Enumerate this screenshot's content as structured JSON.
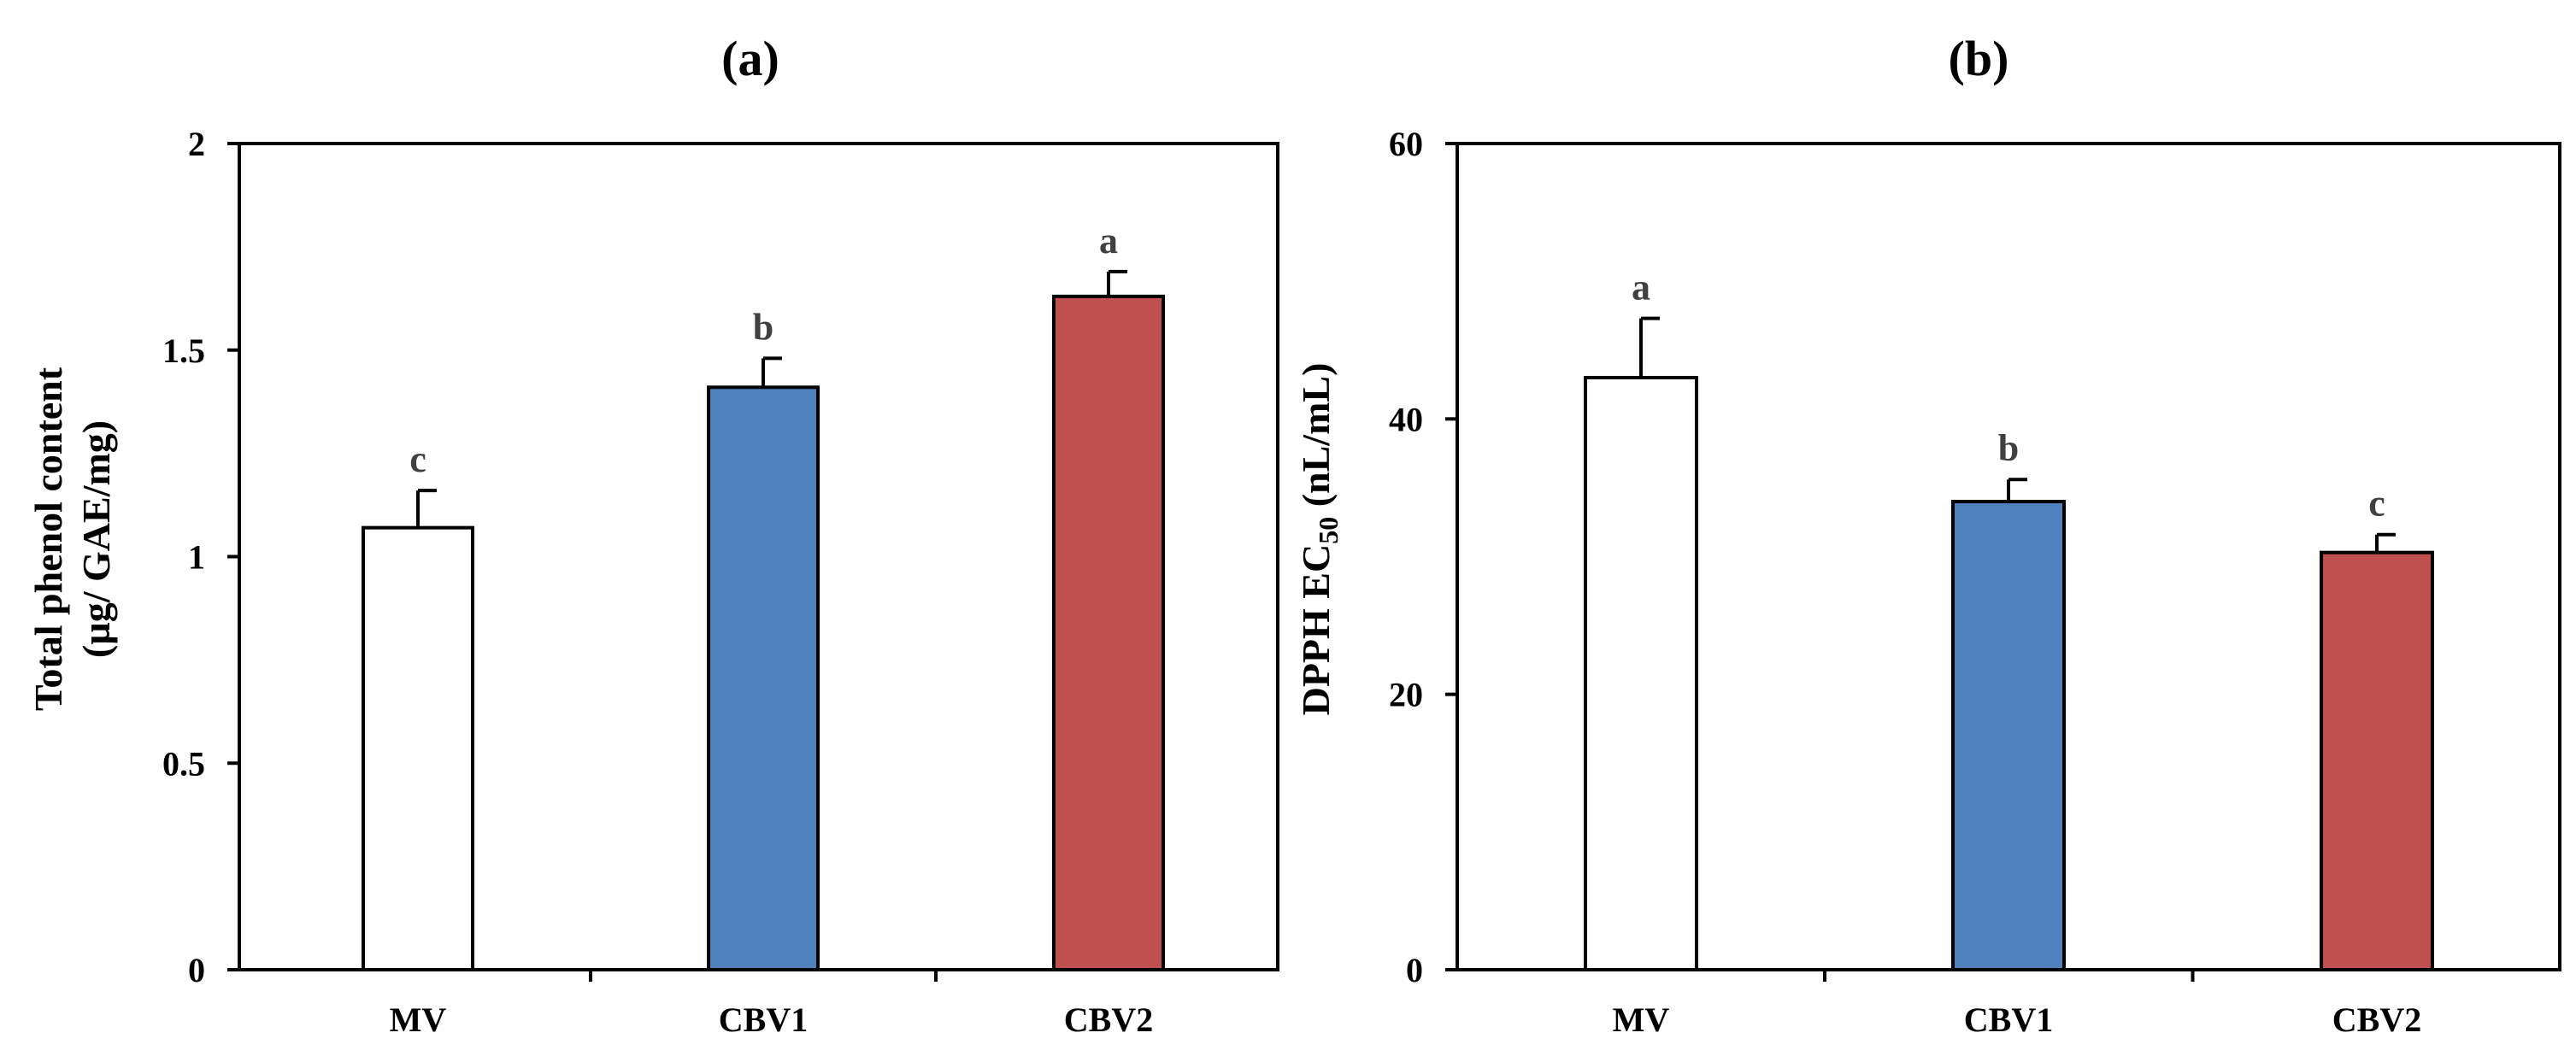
{
  "chart_data": [
    {
      "type": "bar",
      "title": "(a)",
      "categories": [
        "MV",
        "CBV1",
        "CBV2"
      ],
      "values": [
        1.07,
        1.41,
        1.63
      ],
      "errors": [
        0.09,
        0.07,
        0.06
      ],
      "significance": [
        "c",
        "b",
        "a"
      ],
      "colors": [
        "#ffffff",
        "#4f81bd",
        "#c0504d"
      ],
      "ylabel_line1": "Total phenol content",
      "ylabel_line2": "(µg/ GAE/mg)",
      "xlabel": "",
      "ylim": [
        0,
        2
      ],
      "yticks": [
        0,
        0.5,
        1,
        1.5,
        2
      ],
      "ytick_labels": [
        "0",
        "0.5",
        "1",
        "1.5",
        "2"
      ],
      "grid": false
    },
    {
      "type": "bar",
      "title": "(b)",
      "categories": [
        "MV",
        "CBV1",
        "CBV2"
      ],
      "values": [
        43,
        34,
        30.3
      ],
      "errors": [
        4.3,
        1.6,
        1.3
      ],
      "significance": [
        "a",
        "b",
        "c"
      ],
      "colors": [
        "#ffffff",
        "#4f81bd",
        "#c0504d"
      ],
      "ylabel_main": "DPPH EC",
      "ylabel_sub": "50",
      "ylabel_unit": " (nL/mL)",
      "xlabel": "",
      "ylim": [
        0,
        60
      ],
      "yticks": [
        0,
        20,
        40,
        60
      ],
      "ytick_labels": [
        "0",
        "20",
        "40",
        "60"
      ],
      "grid": false
    }
  ]
}
